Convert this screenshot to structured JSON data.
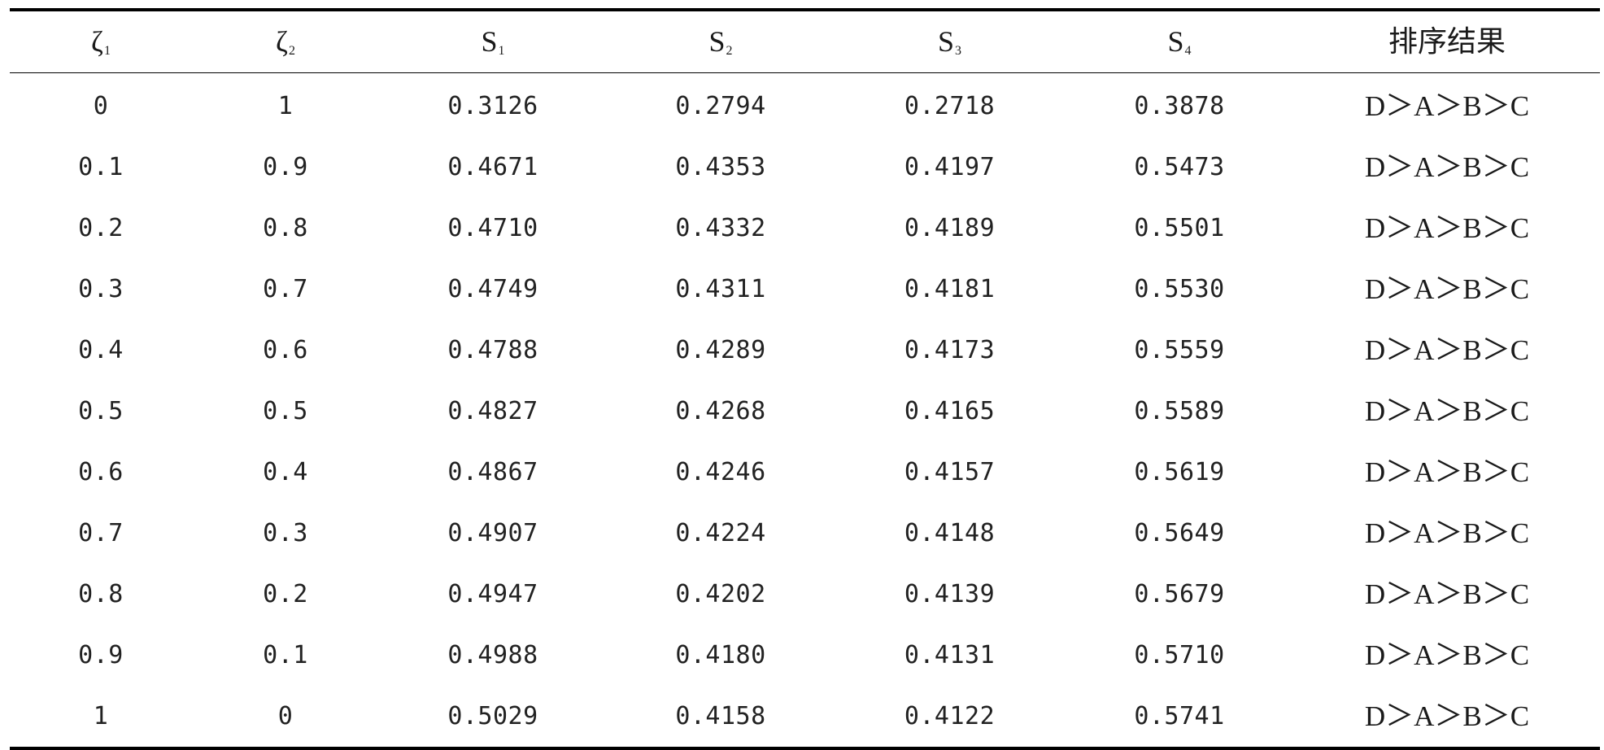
{
  "table": {
    "headers": [
      {
        "base": "ζ",
        "sub": "1"
      },
      {
        "base": "ζ",
        "sub": "2"
      },
      {
        "base": "S",
        "sub": "1"
      },
      {
        "base": "S",
        "sub": "2"
      },
      {
        "base": "S",
        "sub": "3"
      },
      {
        "base": "S",
        "sub": "4"
      },
      {
        "base": "排序结果",
        "sub": ""
      }
    ],
    "rows": [
      [
        "0",
        "1",
        "0.3126",
        "0.2794",
        "0.2718",
        "0.3878",
        "D＞A＞B＞C"
      ],
      [
        "0.1",
        "0.9",
        "0.4671",
        "0.4353",
        "0.4197",
        "0.5473",
        "D＞A＞B＞C"
      ],
      [
        "0.2",
        "0.8",
        "0.4710",
        "0.4332",
        "0.4189",
        "0.5501",
        "D＞A＞B＞C"
      ],
      [
        "0.3",
        "0.7",
        "0.4749",
        "0.4311",
        "0.4181",
        "0.5530",
        "D＞A＞B＞C"
      ],
      [
        "0.4",
        "0.6",
        "0.4788",
        "0.4289",
        "0.4173",
        "0.5559",
        "D＞A＞B＞C"
      ],
      [
        "0.5",
        "0.5",
        "0.4827",
        "0.4268",
        "0.4165",
        "0.5589",
        "D＞A＞B＞C"
      ],
      [
        "0.6",
        "0.4",
        "0.4867",
        "0.4246",
        "0.4157",
        "0.5619",
        "D＞A＞B＞C"
      ],
      [
        "0.7",
        "0.3",
        "0.4907",
        "0.4224",
        "0.4148",
        "0.5649",
        "D＞A＞B＞C"
      ],
      [
        "0.8",
        "0.2",
        "0.4947",
        "0.4202",
        "0.4139",
        "0.5679",
        "D＞A＞B＞C"
      ],
      [
        "0.9",
        "0.1",
        "0.4988",
        "0.4180",
        "0.4131",
        "0.5710",
        "D＞A＞B＞C"
      ],
      [
        "1",
        "0",
        "0.5029",
        "0.4158",
        "0.4122",
        "0.5741",
        "D＞A＞B＞C"
      ]
    ]
  }
}
